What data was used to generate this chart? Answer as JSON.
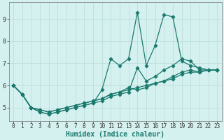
{
  "xlabel": "Humidex (Indice chaleur)",
  "ylabel": "",
  "bg_color": "#d4f0ef",
  "line_color": "#1a7a6e",
  "grid_color": "#b8dbd8",
  "xlim": [
    -0.5,
    23.5
  ],
  "ylim": [
    4.4,
    9.75
  ],
  "yticks": [
    5,
    6,
    7,
    8,
    9
  ],
  "xticks": [
    0,
    1,
    2,
    3,
    4,
    5,
    6,
    7,
    8,
    9,
    10,
    11,
    12,
    13,
    14,
    15,
    16,
    17,
    18,
    19,
    20,
    21,
    22,
    23
  ],
  "series": [
    [
      6.0,
      5.6,
      5.0,
      4.8,
      4.7,
      4.8,
      4.9,
      5.0,
      5.1,
      5.2,
      5.8,
      7.2,
      6.9,
      7.2,
      9.3,
      6.9,
      7.8,
      9.2,
      9.1,
      7.1,
      6.9,
      6.8,
      6.7,
      6.7
    ],
    [
      6.0,
      5.6,
      5.0,
      4.8,
      4.7,
      4.8,
      4.9,
      5.0,
      5.1,
      5.2,
      5.3,
      5.5,
      5.6,
      5.7,
      6.8,
      6.2,
      6.4,
      6.7,
      6.9,
      7.2,
      7.1,
      6.7,
      6.7,
      6.7
    ],
    [
      6.0,
      5.6,
      5.0,
      4.9,
      4.8,
      4.9,
      5.0,
      5.1,
      5.2,
      5.3,
      5.4,
      5.6,
      5.7,
      5.9,
      5.8,
      5.9,
      6.1,
      6.2,
      6.4,
      6.6,
      6.7,
      6.6,
      6.7,
      6.7
    ],
    [
      6.0,
      5.6,
      5.0,
      4.9,
      4.8,
      4.9,
      5.0,
      5.1,
      5.2,
      5.3,
      5.4,
      5.6,
      5.7,
      5.8,
      5.9,
      6.0,
      6.1,
      6.2,
      6.3,
      6.5,
      6.6,
      6.6,
      6.7,
      6.7
    ]
  ],
  "marker": "D",
  "markersize": 2.5,
  "linewidth": 0.9,
  "xlabel_fontsize": 7,
  "tick_fontsize": 5.5,
  "xlabel_color": "#1a7a6e"
}
